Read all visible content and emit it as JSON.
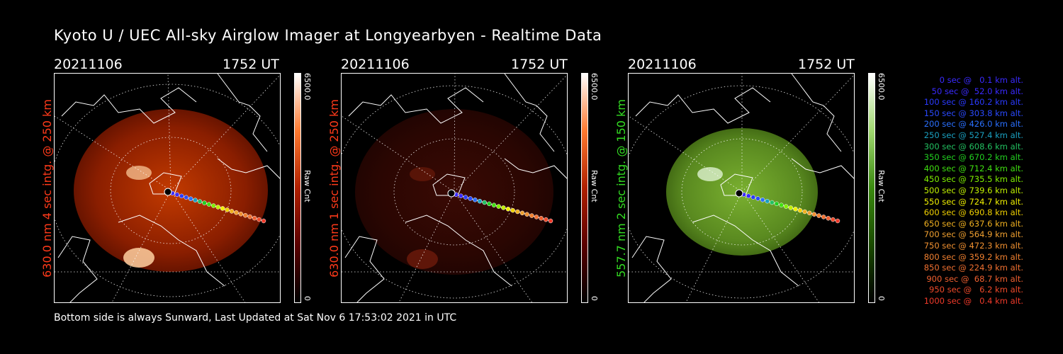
{
  "title": "Kyoto U / UEC All-sky Airglow Imager at Longyearbyen - Realtime Data",
  "panels": [
    {
      "date": "20211106",
      "time": "1752 UT",
      "side_label": "630.0 nm 4 sec intg. @ 250 km",
      "label_color": "#ff3a1a",
      "cbar_max": "6500.0",
      "cbar_min": "0",
      "cbar_unit": "Raw Cnt",
      "theme": "red"
    },
    {
      "date": "20211106",
      "time": "1752 UT",
      "side_label": "630.0 nm 1 sec intg. @ 250 km",
      "label_color": "#ff3a1a",
      "cbar_max": "6500.0",
      "cbar_min": "0",
      "cbar_unit": "Raw Cnt",
      "theme": "darkred"
    },
    {
      "date": "20211106",
      "time": "1752 UT",
      "side_label": "557.7 nm 2 sec intg. @ 150 km",
      "label_color": "#33dd22",
      "cbar_max": "6500.0",
      "cbar_min": "0",
      "cbar_unit": "Raw Cnt",
      "theme": "green"
    }
  ],
  "legend": [
    {
      "text": "0 sec @   0.1 km alt.",
      "color": "#3a2aff"
    },
    {
      "text": "50 sec @  52.0 km alt.",
      "color": "#3a2aff"
    },
    {
      "text": "100 sec @ 160.2 km alt.",
      "color": "#2a3aff"
    },
    {
      "text": "150 sec @ 303.8 km alt.",
      "color": "#2a4aff"
    },
    {
      "text": "200 sec @ 426.0 km alt.",
      "color": "#2a70ff"
    },
    {
      "text": "250 sec @ 527.4 km alt.",
      "color": "#1aa0c0"
    },
    {
      "text": "300 sec @ 608.6 km alt.",
      "color": "#22c060"
    },
    {
      "text": "350 sec @ 670.2 km alt.",
      "color": "#22d020"
    },
    {
      "text": "400 sec @ 712.4 km alt.",
      "color": "#40e010"
    },
    {
      "text": "450 sec @ 735.5 km alt.",
      "color": "#80f000"
    },
    {
      "text": "500 sec @ 739.6 km alt.",
      "color": "#c0f000"
    },
    {
      "text": "550 sec @ 724.7 km alt.",
      "color": "#f0f000"
    },
    {
      "text": "600 sec @ 690.8 km alt.",
      "color": "#f0d000"
    },
    {
      "text": "650 sec @ 637.6 km alt.",
      "color": "#f0b020"
    },
    {
      "text": "700 sec @ 564.9 km alt.",
      "color": "#f0a030"
    },
    {
      "text": "750 sec @ 472.3 km alt.",
      "color": "#f09030"
    },
    {
      "text": "800 sec @ 359.2 km alt.",
      "color": "#f08030"
    },
    {
      "text": "850 sec @ 224.9 km alt.",
      "color": "#f07030"
    },
    {
      "text": "900 sec @  68.7 km alt.",
      "color": "#f06030"
    },
    {
      "text": "950 sec @   6.2 km alt.",
      "color": "#f04a2a"
    },
    {
      "text": "1000 sec @   0.4 km alt.",
      "color": "#f03a2a"
    }
  ],
  "footer": "Bottom side is always Sunward, Last Updated at Sat Nov  6 17:53:02 2021 in UTC"
}
